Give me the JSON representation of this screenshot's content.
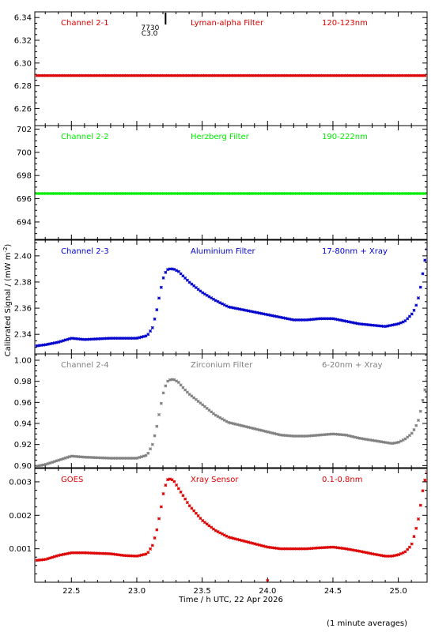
{
  "figure": {
    "xlabel": "Time / h UTC, 22 Apr 2026",
    "ylabel": "Calibrated Signal / (mW m",
    "ylabel_sup": "-2",
    "ylabel_close": ")",
    "footnote": "(1 minute averages)",
    "marker": {
      "time": 23.22,
      "label_top": "7730",
      "label_bottom": "C3.0"
    }
  },
  "chart_data": [
    {
      "type": "scatter",
      "channel": "Channel 2-1",
      "filter": "Lyman-alpha Filter",
      "band": "120-123nm",
      "color": "#dd0000",
      "xlim": [
        22.22,
        25.22
      ],
      "ylim": [
        6.245,
        6.345
      ],
      "yticks": [
        6.26,
        6.28,
        6.3,
        6.32,
        6.34
      ],
      "ytick_labels": [
        "6.26",
        "6.28",
        "6.30",
        "6.32",
        "6.34"
      ],
      "grid": false,
      "show_xticklabels": false,
      "profile": {
        "x": [
          22.22,
          25.22
        ],
        "y": [
          6.289,
          6.289
        ]
      }
    },
    {
      "type": "scatter",
      "channel": "Channel 2-2",
      "filter": "Herzberg Filter",
      "band": "190-222nm",
      "color": "#00ee00",
      "xlim": [
        22.22,
        25.22
      ],
      "ylim": [
        692.5,
        702.3
      ],
      "yticks": [
        694,
        696,
        698,
        700,
        702
      ],
      "ytick_labels": [
        "694",
        "696",
        "698",
        "700",
        "702"
      ],
      "grid": false,
      "show_xticklabels": false,
      "profile": {
        "x": [
          22.22,
          25.22
        ],
        "y": [
          696.45,
          696.45
        ]
      }
    },
    {
      "type": "scatter",
      "channel": "Channel 2-3",
      "filter": "Aluminium Filter",
      "band": "17-80nm + Xray",
      "color": "#0000cc",
      "xlim": [
        22.22,
        25.22
      ],
      "ylim": [
        2.325,
        2.412
      ],
      "yticks": [
        2.34,
        2.36,
        2.38,
        2.4
      ],
      "ytick_labels": [
        "2.34",
        "2.36",
        "2.38",
        "2.40"
      ],
      "grid": false,
      "show_xticklabels": false,
      "profile": {
        "x": [
          22.22,
          22.3,
          22.4,
          22.5,
          22.6,
          22.8,
          22.9,
          23.0,
          23.08,
          23.12,
          23.15,
          23.18,
          23.21,
          23.24,
          23.28,
          23.32,
          23.36,
          23.4,
          23.5,
          23.6,
          23.7,
          23.8,
          23.9,
          24.0,
          24.1,
          24.2,
          24.3,
          24.4,
          24.5,
          24.6,
          24.7,
          24.8,
          24.9,
          24.95,
          25.0,
          25.05,
          25.1,
          25.13,
          25.16,
          25.18,
          25.2,
          25.22
        ],
        "y": [
          2.331,
          2.332,
          2.334,
          2.337,
          2.336,
          2.337,
          2.337,
          2.337,
          2.339,
          2.345,
          2.357,
          2.373,
          2.386,
          2.39,
          2.39,
          2.388,
          2.384,
          2.38,
          2.372,
          2.366,
          2.361,
          2.359,
          2.357,
          2.355,
          2.353,
          2.351,
          2.351,
          2.352,
          2.352,
          2.35,
          2.348,
          2.347,
          2.346,
          2.347,
          2.348,
          2.35,
          2.355,
          2.36,
          2.37,
          2.382,
          2.395,
          2.405
        ]
      }
    },
    {
      "type": "scatter",
      "channel": "Channel 2-4",
      "filter": "Zirconium Filter",
      "band": "6-20nm + Xray",
      "color": "#808080",
      "xlim": [
        22.22,
        25.22
      ],
      "ylim": [
        0.898,
        1.006
      ],
      "yticks": [
        0.9,
        0.92,
        0.94,
        0.96,
        0.98,
        1.0
      ],
      "ytick_labels": [
        "0.90",
        "0.92",
        "0.94",
        "0.96",
        "0.98",
        "1.00"
      ],
      "grid": false,
      "show_xticklabels": false,
      "profile": {
        "x": [
          22.22,
          22.3,
          22.4,
          22.5,
          22.6,
          22.8,
          22.9,
          23.0,
          23.08,
          23.12,
          23.15,
          23.18,
          23.21,
          23.24,
          23.28,
          23.32,
          23.36,
          23.4,
          23.5,
          23.6,
          23.7,
          23.8,
          23.9,
          24.0,
          24.1,
          24.2,
          24.3,
          24.4,
          24.5,
          24.6,
          24.7,
          24.8,
          24.9,
          24.95,
          25.0,
          25.05,
          25.1,
          25.13,
          25.16,
          25.18,
          25.2,
          25.22
        ],
        "y": [
          0.899,
          0.901,
          0.905,
          0.909,
          0.908,
          0.907,
          0.907,
          0.907,
          0.91,
          0.92,
          0.935,
          0.955,
          0.973,
          0.981,
          0.982,
          0.979,
          0.973,
          0.968,
          0.958,
          0.948,
          0.941,
          0.938,
          0.935,
          0.932,
          0.929,
          0.928,
          0.928,
          0.929,
          0.93,
          0.929,
          0.926,
          0.924,
          0.922,
          0.921,
          0.922,
          0.925,
          0.93,
          0.936,
          0.945,
          0.958,
          0.97,
          0.982
        ]
      }
    },
    {
      "type": "scatter",
      "channel": "GOES",
      "filter": "Xray Sensor",
      "band": "0.1-0.8nm",
      "color": "#dd0000",
      "xlim": [
        22.22,
        25.22
      ],
      "ylim": [
        0.0,
        0.0034
      ],
      "yticks": [
        0.001,
        0.002,
        0.003
      ],
      "ytick_labels": [
        "0.001",
        "0.002",
        "0.003"
      ],
      "grid": false,
      "show_xticklabels": true,
      "xticks": [
        22.5,
        23.0,
        23.5,
        24.0,
        24.5,
        25.0
      ],
      "xtick_labels": [
        "22.5",
        "23.0",
        "23.5",
        "24.0",
        "24.5",
        "25.0"
      ],
      "outlier": {
        "x": 24.0,
        "y": 0.0
      },
      "profile": {
        "x": [
          22.22,
          22.3,
          22.4,
          22.5,
          22.6,
          22.8,
          22.9,
          23.0,
          23.08,
          23.12,
          23.15,
          23.18,
          23.21,
          23.24,
          23.28,
          23.32,
          23.36,
          23.4,
          23.5,
          23.6,
          23.7,
          23.8,
          23.9,
          24.0,
          24.1,
          24.2,
          24.3,
          24.4,
          24.5,
          24.6,
          24.7,
          24.8,
          24.9,
          24.95,
          25.0,
          25.05,
          25.1,
          25.13,
          25.16,
          25.18,
          25.2,
          25.22
        ],
        "y": [
          0.00065,
          0.00068,
          0.0008,
          0.00088,
          0.00088,
          0.00085,
          0.0008,
          0.00078,
          0.00085,
          0.0011,
          0.0015,
          0.0021,
          0.0028,
          0.0031,
          0.00305,
          0.0028,
          0.00255,
          0.0023,
          0.00185,
          0.00155,
          0.00135,
          0.00125,
          0.00115,
          0.00105,
          0.001,
          0.001,
          0.001,
          0.00103,
          0.00105,
          0.001,
          0.00093,
          0.00085,
          0.00078,
          0.00078,
          0.00082,
          0.0009,
          0.0011,
          0.0015,
          0.002,
          0.0026,
          0.003,
          0.0033
        ]
      }
    }
  ]
}
